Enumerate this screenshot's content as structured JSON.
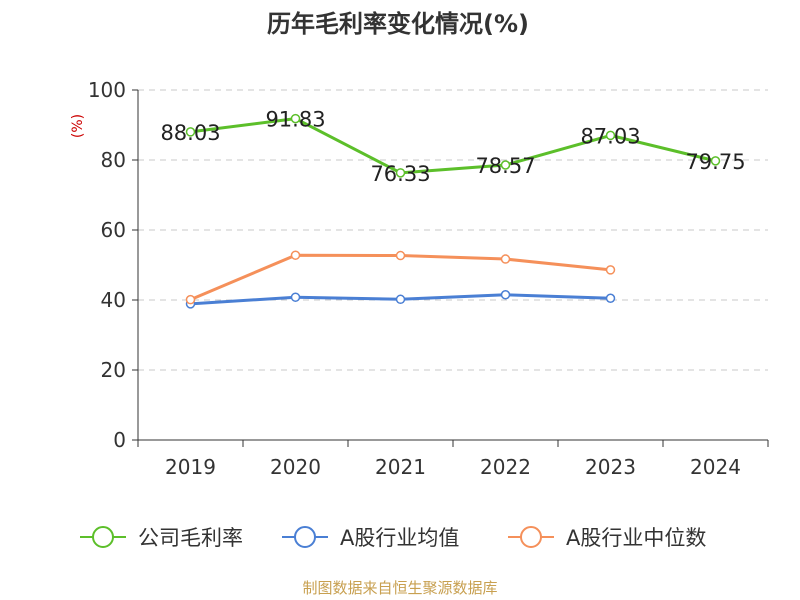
{
  "chart_data": {
    "type": "line",
    "title": "历年毛利率变化情况(%)",
    "yunit": "(%)",
    "categories": [
      "2019",
      "2020",
      "2021",
      "2022",
      "2023",
      "2024"
    ],
    "ylim": [
      0,
      100
    ],
    "yticks": [
      0,
      20,
      40,
      60,
      80,
      100
    ],
    "grid": true,
    "legend_position": "bottom",
    "series": [
      {
        "name": "公司毛利率",
        "color": "#5cbf2a",
        "values": [
          88.03,
          91.83,
          76.33,
          78.57,
          87.03,
          79.75
        ],
        "labels": [
          "88.03",
          "91.83",
          "76.33",
          "78.57",
          "87.03",
          "79.75"
        ]
      },
      {
        "name": "A股行业均值",
        "color": "#4a7fd4",
        "values": [
          38.9,
          40.8,
          40.2,
          41.5,
          40.5,
          null
        ]
      },
      {
        "name": "A股行业中位数",
        "color": "#f5905a",
        "values": [
          40.1,
          52.8,
          52.7,
          51.7,
          48.6,
          null
        ]
      }
    ]
  },
  "source": "制图数据来自恒生聚源数据库"
}
